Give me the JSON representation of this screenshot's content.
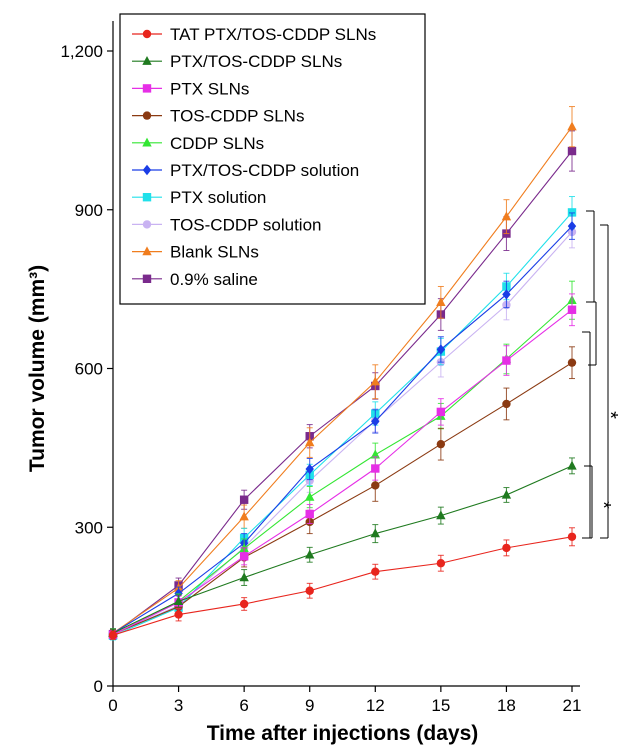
{
  "chart_data": {
    "type": "line",
    "xlabel": "Time after injections (days)",
    "ylabel": "Tumor volume (mm³)",
    "x": [
      0,
      3,
      6,
      9,
      12,
      15,
      18,
      21
    ],
    "xlim": [
      0,
      21
    ],
    "ylim": [
      0,
      1200
    ],
    "yticks": [
      0,
      300,
      600,
      900,
      1200
    ],
    "ytick_labels": [
      "0",
      "300",
      "600",
      "900",
      "1,200"
    ],
    "legend_position": "top-left",
    "series": [
      {
        "name": "TAT PTX/TOS-CDDP SLNs",
        "color": "#e8251d",
        "marker": "circle",
        "values": [
          96,
          135,
          155,
          180,
          216,
          232,
          261,
          282
        ],
        "error": [
          8,
          12,
          12,
          14,
          14,
          15,
          15,
          17
        ]
      },
      {
        "name": "PTX/TOS-CDDP SLNs",
        "color": "#1f7a1f",
        "marker": "triangle",
        "values": [
          100,
          160,
          205,
          248,
          288,
          322,
          361,
          416
        ],
        "error": [
          8,
          12,
          15,
          14,
          17,
          16,
          14,
          15
        ]
      },
      {
        "name": "PTX SLNs",
        "color": "#e62ee6",
        "marker": "square",
        "values": [
          97,
          158,
          245,
          325,
          411,
          518,
          615,
          711
        ],
        "error": [
          8,
          12,
          16,
          18,
          22,
          25,
          28,
          30
        ]
      },
      {
        "name": "TOS-CDDP SLNs",
        "color": "#8b3a12",
        "marker": "circle",
        "values": [
          98,
          150,
          243,
          310,
          379,
          457,
          533,
          611
        ],
        "error": [
          8,
          12,
          18,
          22,
          30,
          30,
          30,
          30
        ]
      },
      {
        "name": "CDDP SLNs",
        "color": "#33e633",
        "marker": "triangle",
        "values": [
          100,
          160,
          260,
          357,
          437,
          510,
          618,
          729
        ],
        "error": [
          8,
          14,
          18,
          20,
          22,
          24,
          28,
          36
        ]
      },
      {
        "name": "PTX/TOS-CDDP solution",
        "color": "#1a3de6",
        "marker": "diamond",
        "values": [
          100,
          175,
          270,
          410,
          500,
          636,
          740,
          869
        ],
        "error": [
          8,
          12,
          18,
          20,
          22,
          24,
          25,
          25
        ]
      },
      {
        "name": "PTX solution",
        "color": "#20e0ea",
        "marker": "square",
        "values": [
          95,
          148,
          280,
          399,
          515,
          632,
          755,
          895
        ],
        "error": [
          8,
          14,
          18,
          20,
          22,
          25,
          25,
          30
        ]
      },
      {
        "name": "TOS-CDDP solution",
        "color": "#c9b3f2",
        "marker": "circle",
        "values": [
          98,
          152,
          262,
          388,
          502,
          612,
          720,
          858
        ],
        "error": [
          8,
          12,
          18,
          22,
          22,
          28,
          28,
          30
        ]
      },
      {
        "name": "Blank SLNs",
        "color": "#f07d1e",
        "marker": "triangle",
        "values": [
          100,
          185,
          320,
          460,
          575,
          725,
          887,
          1057
        ],
        "error": [
          8,
          14,
          22,
          28,
          32,
          30,
          32,
          38
        ]
      },
      {
        "name": "0.9% saline",
        "color": "#7a2a8c",
        "marker": "square",
        "values": [
          98,
          190,
          352,
          472,
          567,
          702,
          855,
          1011
        ],
        "error": [
          8,
          14,
          18,
          22,
          25,
          30,
          32,
          38
        ]
      }
    ],
    "significance": [
      {
        "label": "*"
      },
      {
        "label": "*"
      },
      {
        "label": "*"
      }
    ]
  }
}
